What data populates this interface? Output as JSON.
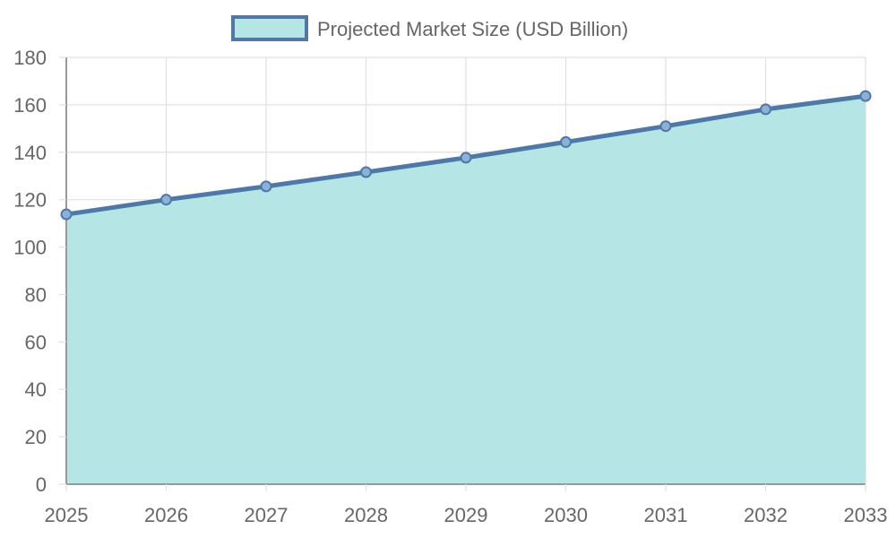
{
  "chart_data": {
    "type": "area",
    "title": "",
    "xlabel": "",
    "ylabel": "",
    "x": [
      "2025",
      "2026",
      "2027",
      "2028",
      "2029",
      "2030",
      "2031",
      "2032",
      "2033"
    ],
    "series": [
      {
        "name": "Projected Market Size (USD Billion)",
        "values": [
          113.8,
          120.0,
          125.6,
          131.6,
          137.7,
          144.3,
          151.0,
          158.1,
          163.7
        ],
        "line_color": "#4e79a7",
        "fill_color": "#b5e5e5"
      }
    ],
    "ylim": [
      0,
      180
    ],
    "y_ticks": [
      0,
      20,
      40,
      60,
      80,
      100,
      120,
      140,
      160,
      180
    ],
    "grid": true,
    "legend_position": "top-center",
    "colors": {
      "grid": "#e0e0e0",
      "axis": "#999999",
      "tick_text": "#666666"
    }
  }
}
